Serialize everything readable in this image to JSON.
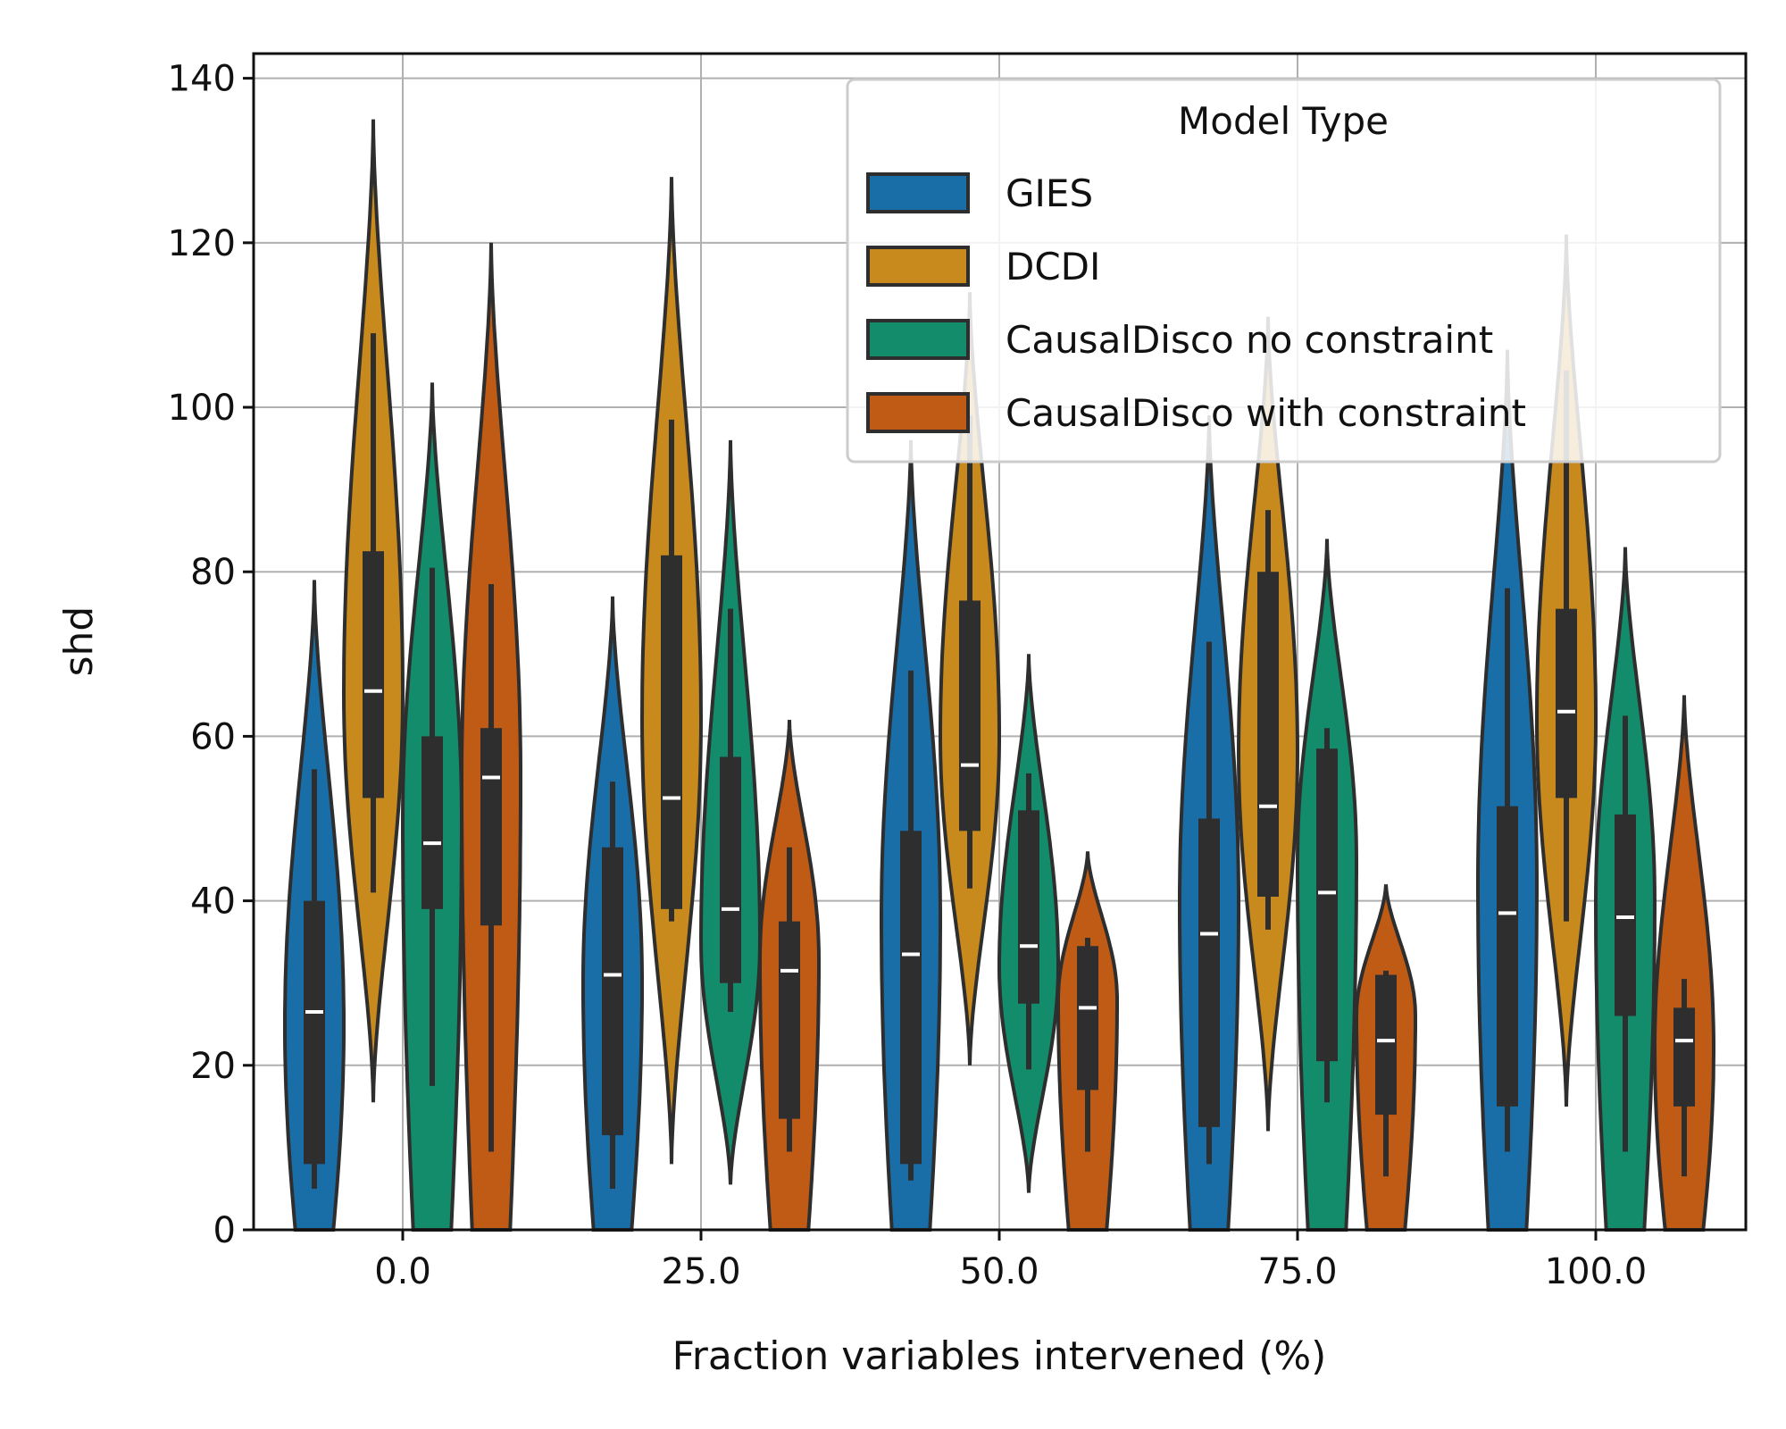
{
  "chart_data": {
    "type": "violin",
    "xlabel": "Fraction variables intervened (%)",
    "ylabel": "shd",
    "ylim": [
      0,
      143
    ],
    "yticks": [
      "0",
      "20",
      "40",
      "60",
      "80",
      "100",
      "120",
      "140"
    ],
    "categories": [
      "0.0",
      "25.0",
      "50.0",
      "75.0",
      "100.0"
    ],
    "grid": true,
    "legend": {
      "title": "Model Type",
      "placement": "top-right"
    },
    "series": [
      {
        "name": "GIES",
        "color": "#1a6ea8",
        "stats": [
          {
            "min": 0,
            "max": 79,
            "q1": 8,
            "median": 26.5,
            "q3": 40,
            "wlow": 5,
            "whigh": 56,
            "mode": 25
          },
          {
            "min": 0,
            "max": 77,
            "q1": 11.5,
            "median": 31,
            "q3": 46.5,
            "wlow": 5,
            "whigh": 54.5,
            "mode": 30
          },
          {
            "min": 0,
            "max": 96,
            "q1": 8,
            "median": 33.5,
            "q3": 48.5,
            "wlow": 6,
            "whigh": 68,
            "mode": 38
          },
          {
            "min": 0,
            "max": 99,
            "q1": 12.5,
            "median": 36,
            "q3": 50,
            "wlow": 8,
            "whigh": 71.5,
            "mode": 40
          },
          {
            "min": 0,
            "max": 107,
            "q1": 15,
            "median": 38.5,
            "q3": 51.5,
            "wlow": 9.5,
            "whigh": 78,
            "mode": 42
          }
        ]
      },
      {
        "name": "DCDI",
        "color": "#c8891d",
        "stats": [
          {
            "min": 15.5,
            "max": 135,
            "q1": 52.5,
            "median": 65.5,
            "q3": 82.5,
            "wlow": 41,
            "whigh": 109,
            "mode": 65
          },
          {
            "min": 8,
            "max": 128,
            "q1": 39,
            "median": 52.5,
            "q3": 82,
            "wlow": 37.5,
            "whigh": 98.5,
            "mode": 62
          },
          {
            "min": 20,
            "max": 114,
            "q1": 48.5,
            "median": 56.5,
            "q3": 76.5,
            "wlow": 41.5,
            "whigh": 99,
            "mode": 60
          },
          {
            "min": 12,
            "max": 111,
            "q1": 40.5,
            "median": 51.5,
            "q3": 80,
            "wlow": 36.5,
            "whigh": 87.5,
            "mode": 58
          },
          {
            "min": 15,
            "max": 121,
            "q1": 52.5,
            "median": 63,
            "q3": 75.5,
            "wlow": 37.5,
            "whigh": 104.5,
            "mode": 62
          }
        ]
      },
      {
        "name": "CausalDisco no constraint",
        "color": "#128c6a",
        "stats": [
          {
            "min": 0,
            "max": 103,
            "q1": 39,
            "median": 47,
            "q3": 60,
            "wlow": 17.5,
            "whigh": 80.5,
            "mode": 50
          },
          {
            "min": 5.5,
            "max": 96,
            "q1": 30,
            "median": 39,
            "q3": 57.5,
            "wlow": 26.5,
            "whigh": 75.5,
            "mode": 35
          },
          {
            "min": 4.5,
            "max": 70,
            "q1": 27.5,
            "median": 34.5,
            "q3": 51,
            "wlow": 19.5,
            "whigh": 55.5,
            "mode": 32
          },
          {
            "min": 0,
            "max": 84,
            "q1": 20.5,
            "median": 41,
            "q3": 58.5,
            "wlow": 15.5,
            "whigh": 61,
            "mode": 45
          },
          {
            "min": 0,
            "max": 83,
            "q1": 26,
            "median": 38,
            "q3": 50.5,
            "wlow": 9.5,
            "whigh": 62.5,
            "mode": 40
          }
        ]
      },
      {
        "name": "CausalDisco with constraint",
        "color": "#bf5b14",
        "stats": [
          {
            "min": 0,
            "max": 120,
            "q1": 37,
            "median": 55,
            "q3": 61,
            "wlow": 9.5,
            "whigh": 78.5,
            "mode": 55
          },
          {
            "min": 0,
            "max": 62,
            "q1": 13.5,
            "median": 31.5,
            "q3": 37.5,
            "wlow": 9.5,
            "whigh": 46.5,
            "mode": 33
          },
          {
            "min": 0,
            "max": 46,
            "q1": 17,
            "median": 27,
            "q3": 34.5,
            "wlow": 9.5,
            "whigh": 35.5,
            "mode": 28
          },
          {
            "min": 0,
            "max": 42,
            "q1": 14,
            "median": 23,
            "q3": 31,
            "wlow": 6.5,
            "whigh": 31.5,
            "mode": 26
          },
          {
            "min": 0,
            "max": 65,
            "q1": 15,
            "median": 23,
            "q3": 27,
            "wlow": 6.5,
            "whigh": 30.5,
            "mode": 22
          }
        ]
      }
    ]
  }
}
